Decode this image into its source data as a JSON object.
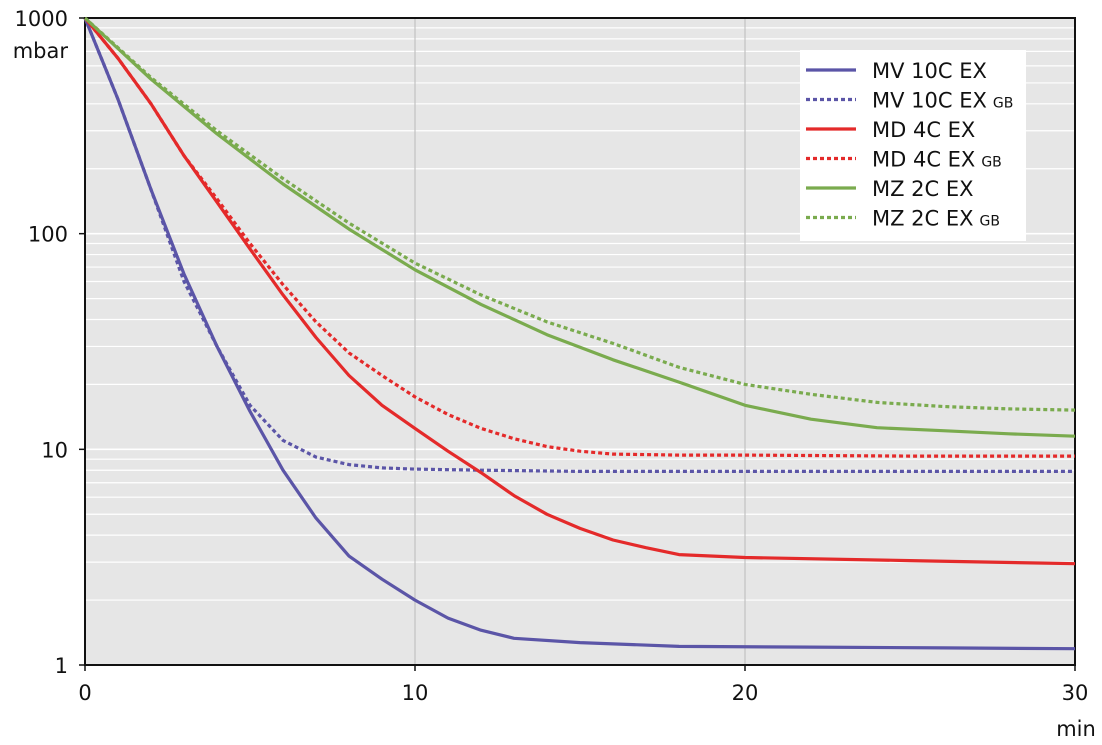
{
  "chart_data": {
    "type": "line",
    "title": "",
    "xlabel": "min",
    "ylabel": "mbar",
    "x_unit": "min",
    "y_unit": "mbar",
    "yscale": "log",
    "xlim": [
      0,
      30
    ],
    "ylim": [
      1,
      1000
    ],
    "xticks": [
      0,
      10,
      20,
      30
    ],
    "yticks": [
      1,
      10,
      100,
      1000
    ],
    "grid": true,
    "legend_position": "top-right",
    "background": "#e6e6e6",
    "series": [
      {
        "name": "MV 10C EX",
        "suffix": "",
        "color": "#5b55a7",
        "style": "solid",
        "points": [
          [
            0,
            1000
          ],
          [
            1,
            420
          ],
          [
            2,
            160
          ],
          [
            3,
            65
          ],
          [
            4,
            30
          ],
          [
            5,
            15
          ],
          [
            6,
            8
          ],
          [
            7,
            4.8
          ],
          [
            8,
            3.2
          ],
          [
            9,
            2.5
          ],
          [
            10,
            2.0
          ],
          [
            11,
            1.65
          ],
          [
            12,
            1.45
          ],
          [
            13,
            1.33
          ],
          [
            15,
            1.27
          ],
          [
            18,
            1.22
          ],
          [
            22,
            1.21
          ],
          [
            26,
            1.2
          ],
          [
            30,
            1.19
          ]
        ]
      },
      {
        "name": "MV 10C EX",
        "suffix": "GB",
        "color": "#5b55a7",
        "style": "dotted",
        "points": [
          [
            0,
            1000
          ],
          [
            1,
            420
          ],
          [
            2,
            160
          ],
          [
            3,
            60
          ],
          [
            4,
            30
          ],
          [
            5,
            16
          ],
          [
            6,
            11
          ],
          [
            7,
            9.2
          ],
          [
            8,
            8.5
          ],
          [
            9,
            8.2
          ],
          [
            10,
            8.1
          ],
          [
            12,
            8.0
          ],
          [
            15,
            7.9
          ],
          [
            20,
            7.9
          ],
          [
            25,
            7.9
          ],
          [
            30,
            7.9
          ]
        ]
      },
      {
        "name": "MD 4C EX",
        "suffix": "",
        "color": "#e42a2a",
        "style": "solid",
        "points": [
          [
            0,
            1000
          ],
          [
            1,
            650
          ],
          [
            2,
            400
          ],
          [
            3,
            230
          ],
          [
            4,
            140
          ],
          [
            5,
            85
          ],
          [
            6,
            52
          ],
          [
            7,
            33
          ],
          [
            8,
            22
          ],
          [
            9,
            16
          ],
          [
            10,
            12.5
          ],
          [
            11,
            9.8
          ],
          [
            12,
            7.8
          ],
          [
            13,
            6.1
          ],
          [
            14,
            5.0
          ],
          [
            15,
            4.3
          ],
          [
            16,
            3.8
          ],
          [
            17,
            3.5
          ],
          [
            18,
            3.25
          ],
          [
            20,
            3.15
          ],
          [
            25,
            3.05
          ],
          [
            30,
            2.95
          ]
        ]
      },
      {
        "name": "MD 4C EX",
        "suffix": "GB",
        "color": "#e42a2a",
        "style": "dotted",
        "points": [
          [
            0,
            1000
          ],
          [
            1,
            650
          ],
          [
            2,
            400
          ],
          [
            3,
            230
          ],
          [
            4,
            145
          ],
          [
            5,
            90
          ],
          [
            6,
            58
          ],
          [
            7,
            39
          ],
          [
            8,
            28
          ],
          [
            9,
            22
          ],
          [
            10,
            17.5
          ],
          [
            11,
            14.5
          ],
          [
            12,
            12.5
          ],
          [
            13,
            11.2
          ],
          [
            14,
            10.3
          ],
          [
            15,
            9.8
          ],
          [
            16,
            9.5
          ],
          [
            18,
            9.4
          ],
          [
            20,
            9.4
          ],
          [
            25,
            9.3
          ],
          [
            30,
            9.3
          ]
        ]
      },
      {
        "name": "MZ 2C EX",
        "suffix": "",
        "color": "#7aab4e",
        "style": "solid",
        "points": [
          [
            0,
            1000
          ],
          [
            2,
            520
          ],
          [
            4,
            290
          ],
          [
            6,
            170
          ],
          [
            8,
            105
          ],
          [
            10,
            68
          ],
          [
            12,
            47
          ],
          [
            14,
            34
          ],
          [
            16,
            26
          ],
          [
            18,
            20.5
          ],
          [
            20,
            16
          ],
          [
            22,
            13.8
          ],
          [
            24,
            12.6
          ],
          [
            26,
            12.2
          ],
          [
            28,
            11.8
          ],
          [
            30,
            11.5
          ]
        ]
      },
      {
        "name": "MZ 2C EX",
        "suffix": "GB",
        "color": "#7aab4e",
        "style": "dotted",
        "points": [
          [
            0,
            1000
          ],
          [
            2,
            530
          ],
          [
            4,
            300
          ],
          [
            6,
            180
          ],
          [
            8,
            112
          ],
          [
            10,
            73
          ],
          [
            12,
            52
          ],
          [
            14,
            39
          ],
          [
            16,
            31
          ],
          [
            18,
            24
          ],
          [
            20,
            20
          ],
          [
            22,
            18
          ],
          [
            24,
            16.5
          ],
          [
            26,
            15.8
          ],
          [
            28,
            15.4
          ],
          [
            30,
            15.2
          ]
        ]
      }
    ]
  }
}
